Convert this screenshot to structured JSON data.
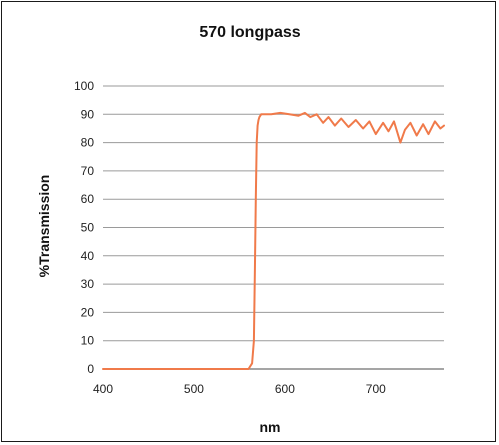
{
  "chart_data": {
    "type": "line",
    "title": "570 longpass",
    "xlabel": "nm",
    "ylabel": "%Transmission",
    "xlim": [
      400,
      775
    ],
    "ylim": [
      0,
      100
    ],
    "x_ticks": [
      400,
      500,
      600,
      700
    ],
    "y_ticks": [
      0,
      10,
      20,
      30,
      40,
      50,
      60,
      70,
      80,
      90,
      100
    ],
    "grid": true,
    "legend": "none",
    "series": [
      {
        "color": "#f07a4a",
        "x": [
          400,
          450,
          500,
          540,
          560,
          564,
          566,
          567,
          568,
          569,
          570,
          571,
          572,
          574,
          578,
          585,
          595,
          605,
          615,
          622,
          628,
          635,
          642,
          648,
          655,
          662,
          670,
          678,
          686,
          693,
          700,
          708,
          714,
          720,
          727,
          732,
          738,
          745,
          752,
          758,
          765,
          771,
          775
        ],
        "y": [
          0,
          0,
          0,
          0,
          0,
          2,
          10,
          35,
          60,
          80,
          86,
          88,
          89,
          90,
          90,
          90,
          90.5,
          90,
          89.5,
          90.5,
          89,
          90,
          87,
          89,
          86,
          88.5,
          85.5,
          88,
          85,
          87.5,
          83,
          87,
          84,
          87.5,
          80,
          84.5,
          87,
          82.5,
          86.5,
          83,
          87.5,
          85,
          86
        ]
      }
    ]
  }
}
